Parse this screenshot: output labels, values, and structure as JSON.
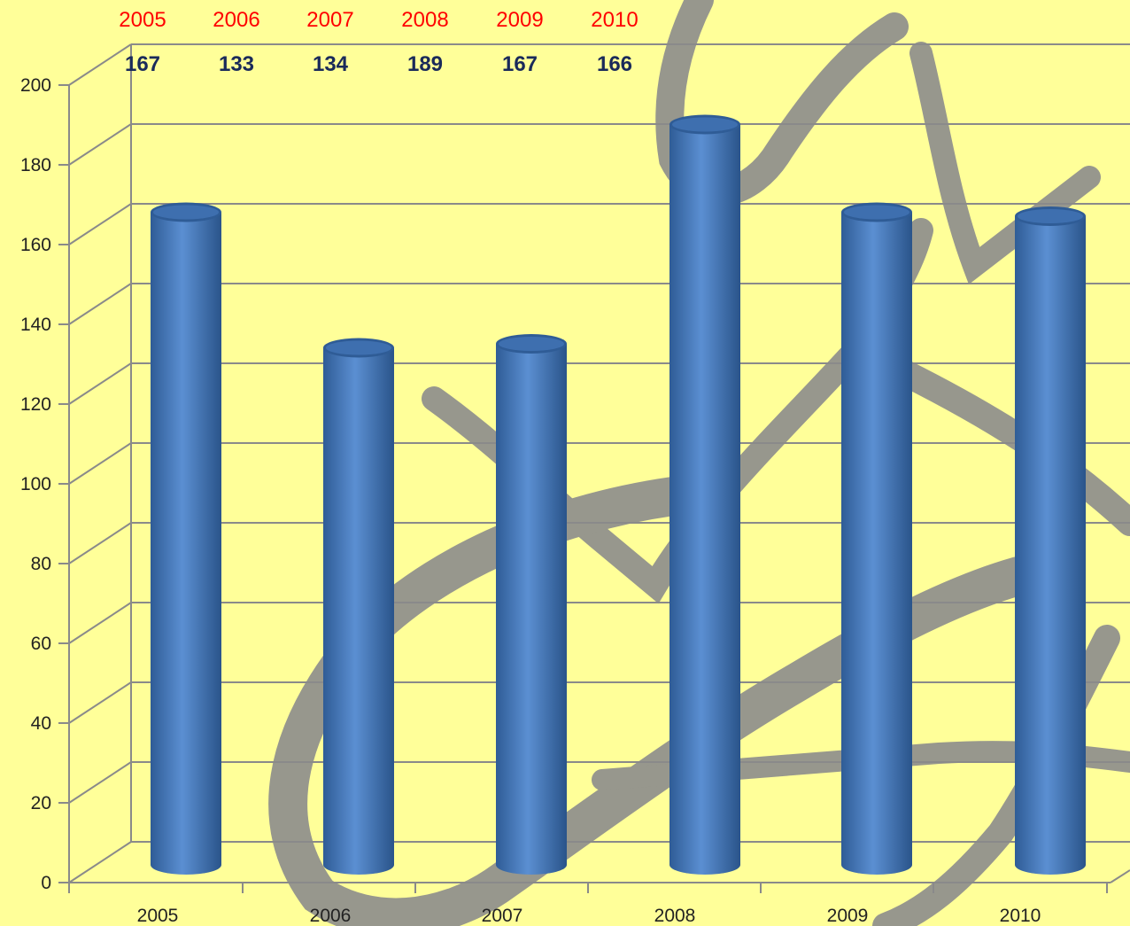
{
  "colors": {
    "background": "#ffff99",
    "bar": "#4a80c4",
    "bar_dark": "#2f5c96",
    "grid": "#8a8a8a",
    "watermark": "#8c8c8c",
    "header_year": "#ff0000",
    "header_value": "#1a2a5a"
  },
  "header": {
    "years": [
      "2005",
      "2006",
      "2007",
      "2008",
      "2009",
      "2010"
    ],
    "values": [
      "167",
      "133",
      "134",
      "189",
      "167",
      "166"
    ]
  },
  "chart_data": {
    "type": "bar",
    "style": "3d-cylinder",
    "categories": [
      "2005",
      "2006",
      "2007",
      "2008",
      "2009",
      "2010"
    ],
    "values": [
      167,
      133,
      134,
      189,
      167,
      166
    ],
    "title": "",
    "xlabel": "",
    "ylabel": "",
    "ylim": [
      0,
      200
    ],
    "yticks": [
      0,
      20,
      40,
      60,
      80,
      100,
      120,
      140,
      160,
      180,
      200
    ],
    "grid": true,
    "legend": "none"
  }
}
